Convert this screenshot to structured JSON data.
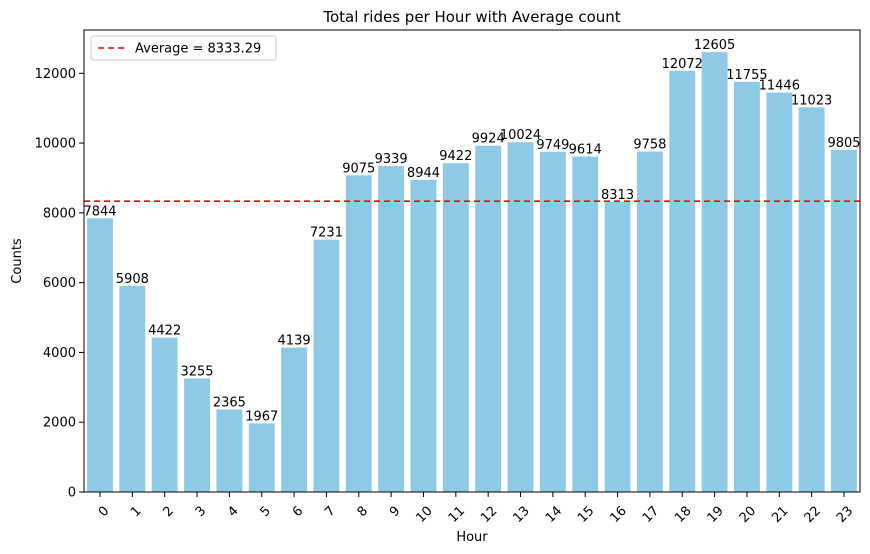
{
  "chart_data": {
    "type": "bar",
    "title": "Total rides per Hour with Average count",
    "xlabel": "Hour",
    "ylabel": "Counts",
    "categories": [
      "0",
      "1",
      "2",
      "3",
      "4",
      "5",
      "6",
      "7",
      "8",
      "9",
      "10",
      "11",
      "12",
      "13",
      "14",
      "15",
      "16",
      "17",
      "18",
      "19",
      "20",
      "21",
      "22",
      "23"
    ],
    "values": [
      7844,
      5908,
      4422,
      3255,
      2365,
      1967,
      4139,
      7231,
      9075,
      9339,
      8944,
      9422,
      9924,
      10024,
      9749,
      9614,
      8313,
      9758,
      12072,
      12605,
      11755,
      11446,
      11023,
      9805
    ],
    "ylim": [
      0,
      13240
    ],
    "yticks": [
      0,
      2000,
      4000,
      6000,
      8000,
      10000,
      12000
    ],
    "bar_color": "#8ecae6",
    "average": {
      "value": 8333.29,
      "label": "Average = 8333.29",
      "color": "#ff0000",
      "style": "dashed"
    },
    "legend_position": "top-left",
    "grid": false
  }
}
